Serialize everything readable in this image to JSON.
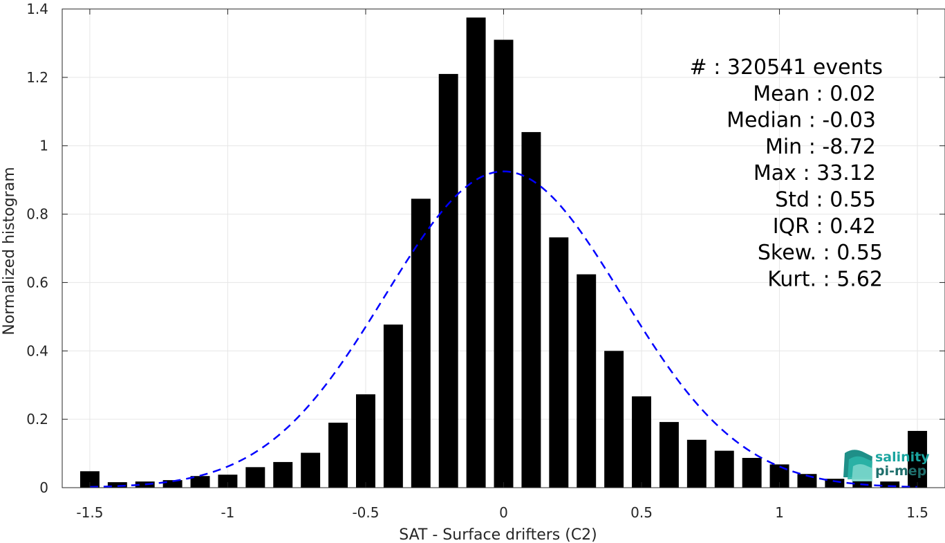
{
  "chart_data": {
    "type": "bar",
    "xlabel": "SAT - Surface drifters (C2)",
    "ylabel": "Normalized histogram",
    "xlim": [
      -1.6,
      1.6
    ],
    "ylim": [
      0,
      1.4
    ],
    "x_ticks": [
      -1.5,
      -1,
      -0.5,
      0,
      0.5,
      1,
      1.5
    ],
    "x_tick_labels": [
      "-1.5",
      "-1",
      "-0.5",
      "0",
      "0.5",
      "1",
      "1.5"
    ],
    "y_ticks": [
      0,
      0.2,
      0.4,
      0.6,
      0.8,
      1,
      1.2,
      1.4
    ],
    "y_tick_labels": [
      "0",
      "0.2",
      "0.4",
      "0.6",
      "0.8",
      "1",
      "1.2",
      "1.4"
    ],
    "grid": true,
    "bar_color": "#000000",
    "bins": [
      -1.5,
      -1.4,
      -1.3,
      -1.2,
      -1.1,
      -1.0,
      -0.9,
      -0.8,
      -0.7,
      -0.6,
      -0.5,
      -0.4,
      -0.3,
      -0.2,
      -0.1,
      0.0,
      0.1,
      0.2,
      0.3,
      0.4,
      0.5,
      0.6,
      0.7,
      0.8,
      0.9,
      1.0,
      1.1,
      1.2,
      1.3,
      1.4,
      1.5
    ],
    "values": [
      0.048,
      0.016,
      0.018,
      0.022,
      0.034,
      0.038,
      0.06,
      0.075,
      0.102,
      0.19,
      0.273,
      0.477,
      0.845,
      1.21,
      1.375,
      1.31,
      1.04,
      0.732,
      0.624,
      0.4,
      0.267,
      0.192,
      0.14,
      0.108,
      0.087,
      0.068,
      0.04,
      0.026,
      0.02,
      0.018,
      0.166
    ],
    "fit": {
      "type": "gaussian",
      "color": "#0000ff",
      "style": "dashed",
      "mean": 0.0,
      "std": 0.43,
      "peak": 0.925
    },
    "stats": [
      "#  : 320541 events",
      "Mean : 0.02",
      "Median : -0.03",
      "Min : -8.72",
      "Max : 33.12",
      "Std : 0.55",
      "IQR : 0.42",
      "Skew. : 0.55",
      "Kurt. : 5.62"
    ]
  },
  "logo": {
    "line1": "salinity",
    "line2": "pi-mep",
    "color1": "#1aa5a0",
    "color2": "#1f6f6c"
  }
}
